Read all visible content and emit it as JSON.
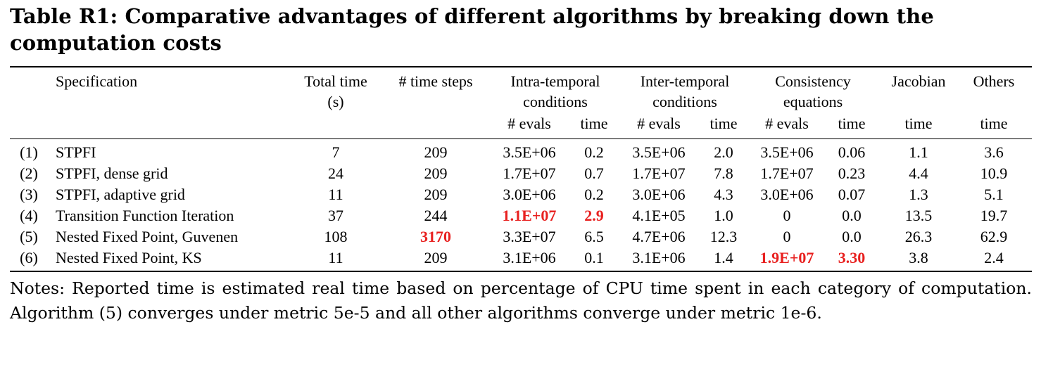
{
  "title": "Table R1: Comparative advantages of different algorithms by breaking down the computation costs",
  "headers": {
    "specification": "Specification",
    "total_time_1": "Total time",
    "total_time_2": "(s)",
    "time_steps": "# time steps",
    "intra_1": "Intra-temporal",
    "intra_2": "conditions",
    "inter_1": "Inter-temporal",
    "inter_2": "conditions",
    "consist_1": "Consistency",
    "consist_2": "equations",
    "jacobian": "Jacobian",
    "others": "Others",
    "evals": "# evals",
    "time": "time"
  },
  "rows": [
    {
      "id": "(1)",
      "spec": "STPFI",
      "total": "7",
      "steps": "209",
      "intra_evals": "3.5E+06",
      "intra_time": "0.2",
      "inter_evals": "3.5E+06",
      "inter_time": "2.0",
      "cons_evals": "3.5E+06",
      "cons_time": "0.06",
      "jac": "1.1",
      "oth": "3.6",
      "highlight": []
    },
    {
      "id": "(2)",
      "spec": "STPFI, dense grid",
      "total": "24",
      "steps": "209",
      "intra_evals": "1.7E+07",
      "intra_time": "0.7",
      "inter_evals": "1.7E+07",
      "inter_time": "7.8",
      "cons_evals": "1.7E+07",
      "cons_time": "0.23",
      "jac": "4.4",
      "oth": "10.9",
      "highlight": []
    },
    {
      "id": "(3)",
      "spec": "STPFI, adaptive grid",
      "total": "11",
      "steps": "209",
      "intra_evals": "3.0E+06",
      "intra_time": "0.2",
      "inter_evals": "3.0E+06",
      "inter_time": "4.3",
      "cons_evals": "3.0E+06",
      "cons_time": "0.07",
      "jac": "1.3",
      "oth": "5.1",
      "highlight": []
    },
    {
      "id": "(4)",
      "spec": "Transition Function Iteration",
      "total": "37",
      "steps": "244",
      "intra_evals": "1.1E+07",
      "intra_time": "2.9",
      "inter_evals": "4.1E+05",
      "inter_time": "1.0",
      "cons_evals": "0",
      "cons_time": "0.0",
      "jac": "13.5",
      "oth": "19.7",
      "highlight": [
        "intra_evals",
        "intra_time"
      ]
    },
    {
      "id": "(5)",
      "spec": "Nested Fixed Point, Guvenen",
      "total": "108",
      "steps": "3170",
      "intra_evals": "3.3E+07",
      "intra_time": "6.5",
      "inter_evals": "4.7E+06",
      "inter_time": "12.3",
      "cons_evals": "0",
      "cons_time": "0.0",
      "jac": "26.3",
      "oth": "62.9",
      "highlight": [
        "steps"
      ]
    },
    {
      "id": "(6)",
      "spec": "Nested Fixed Point, KS",
      "total": "11",
      "steps": "209",
      "intra_evals": "3.1E+06",
      "intra_time": "0.1",
      "inter_evals": "3.1E+06",
      "inter_time": "1.4",
      "cons_evals": "1.9E+07",
      "cons_time": "3.30",
      "jac": "3.8",
      "oth": "2.4",
      "highlight": [
        "cons_evals",
        "cons_time"
      ]
    }
  ],
  "notes": "Notes: Reported time is estimated real time based on percentage of CPU time spent in each category of computation. Algorithm (5) converges under metric 5e-5 and all other algorithms converge under metric 1e-6.",
  "colors": {
    "highlight": "#e8201f"
  }
}
